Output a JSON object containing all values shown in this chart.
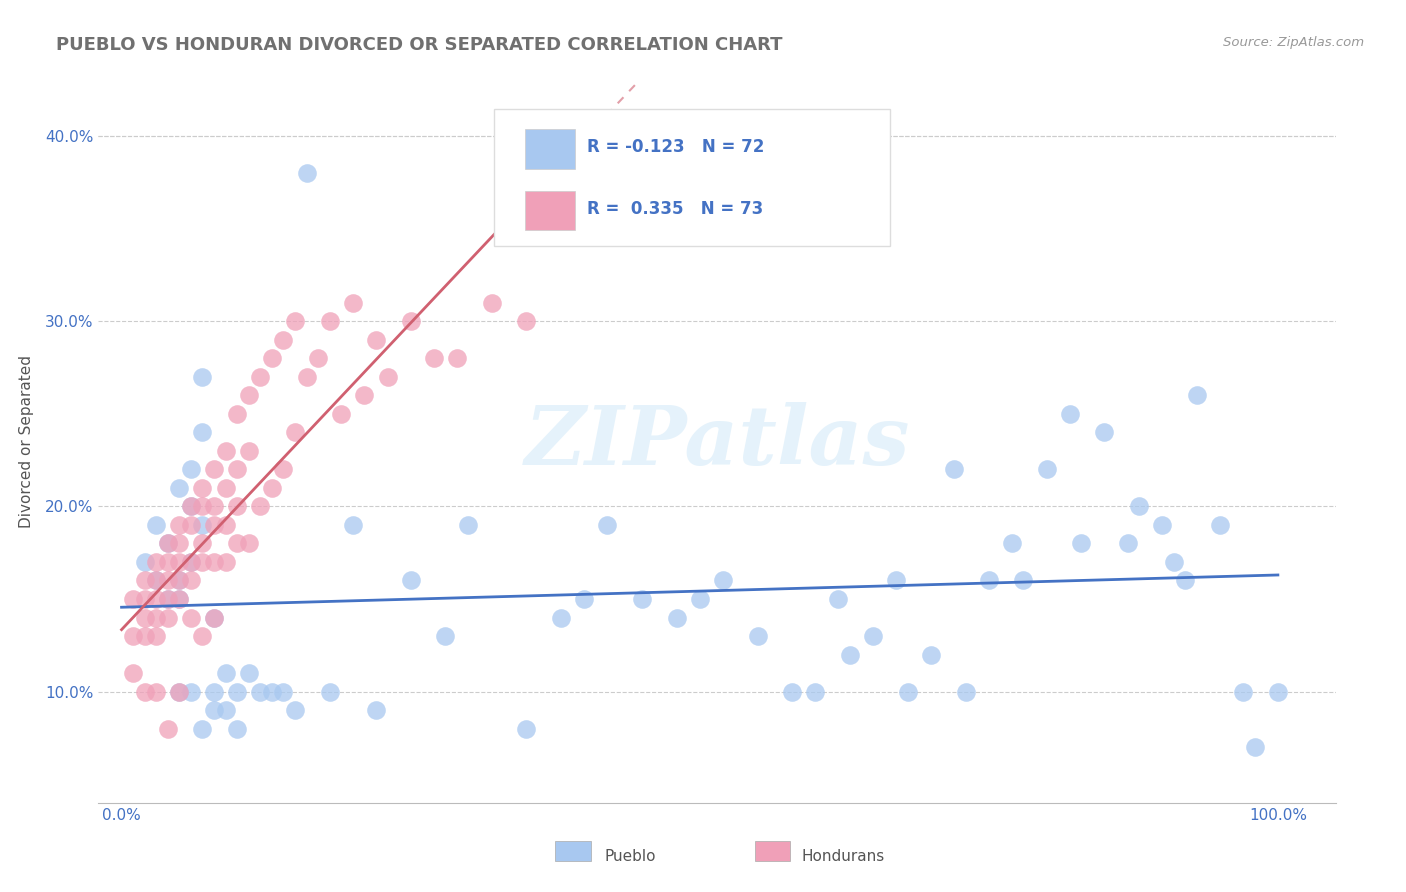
{
  "title": "PUEBLO VS HONDURAN DIVORCED OR SEPARATED CORRELATION CHART",
  "source": "Source: ZipAtlas.com",
  "ylabel": "Divorced or Separated",
  "legend_pueblo": "Pueblo",
  "legend_hondurans": "Hondurans",
  "r_pueblo": -0.123,
  "n_pueblo": 72,
  "r_hondurans": 0.335,
  "n_hondurans": 73,
  "pueblo_color": "#a8c8f0",
  "honduran_color": "#f0a0b8",
  "pueblo_line_color": "#4472c4",
  "honduran_line_color": "#d06070",
  "watermark": "ZIPatlas",
  "background_color": "#ffffff",
  "grid_color": "#cccccc",
  "title_color": "#707070",
  "axis_label_color": "#4472c4",
  "ytick_positions": [
    0.1,
    0.2,
    0.3,
    0.4
  ],
  "ylim": [
    0.04,
    0.43
  ],
  "xlim": [
    -0.02,
    1.05
  ],
  "pueblo_x": [
    0.02,
    0.03,
    0.03,
    0.04,
    0.04,
    0.05,
    0.05,
    0.05,
    0.05,
    0.06,
    0.06,
    0.06,
    0.06,
    0.07,
    0.07,
    0.07,
    0.07,
    0.08,
    0.08,
    0.08,
    0.09,
    0.09,
    0.1,
    0.1,
    0.11,
    0.12,
    0.13,
    0.14,
    0.15,
    0.16,
    0.18,
    0.2,
    0.22,
    0.25,
    0.28,
    0.3,
    0.35,
    0.38,
    0.4,
    0.42,
    0.45,
    0.48,
    0.5,
    0.52,
    0.55,
    0.58,
    0.6,
    0.62,
    0.63,
    0.65,
    0.67,
    0.68,
    0.7,
    0.72,
    0.73,
    0.75,
    0.77,
    0.78,
    0.8,
    0.82,
    0.83,
    0.85,
    0.87,
    0.88,
    0.9,
    0.91,
    0.92,
    0.93,
    0.95,
    0.97,
    0.98,
    1.0
  ],
  "pueblo_y": [
    0.17,
    0.19,
    0.16,
    0.15,
    0.18,
    0.16,
    0.21,
    0.15,
    0.1,
    0.22,
    0.2,
    0.17,
    0.1,
    0.27,
    0.24,
    0.19,
    0.08,
    0.09,
    0.14,
    0.1,
    0.09,
    0.11,
    0.08,
    0.1,
    0.11,
    0.1,
    0.1,
    0.1,
    0.09,
    0.38,
    0.1,
    0.19,
    0.09,
    0.16,
    0.13,
    0.19,
    0.08,
    0.14,
    0.15,
    0.19,
    0.15,
    0.14,
    0.15,
    0.16,
    0.13,
    0.1,
    0.1,
    0.15,
    0.12,
    0.13,
    0.16,
    0.1,
    0.12,
    0.22,
    0.1,
    0.16,
    0.18,
    0.16,
    0.22,
    0.25,
    0.18,
    0.24,
    0.18,
    0.2,
    0.19,
    0.17,
    0.16,
    0.26,
    0.19,
    0.1,
    0.07,
    0.1
  ],
  "honduran_x": [
    0.01,
    0.01,
    0.01,
    0.02,
    0.02,
    0.02,
    0.02,
    0.02,
    0.03,
    0.03,
    0.03,
    0.03,
    0.03,
    0.03,
    0.04,
    0.04,
    0.04,
    0.04,
    0.04,
    0.04,
    0.05,
    0.05,
    0.05,
    0.05,
    0.05,
    0.05,
    0.06,
    0.06,
    0.06,
    0.06,
    0.06,
    0.07,
    0.07,
    0.07,
    0.07,
    0.07,
    0.08,
    0.08,
    0.08,
    0.08,
    0.08,
    0.09,
    0.09,
    0.09,
    0.09,
    0.1,
    0.1,
    0.1,
    0.1,
    0.11,
    0.11,
    0.11,
    0.12,
    0.12,
    0.13,
    0.13,
    0.14,
    0.14,
    0.15,
    0.15,
    0.16,
    0.17,
    0.18,
    0.19,
    0.2,
    0.21,
    0.22,
    0.23,
    0.25,
    0.27,
    0.29,
    0.32,
    0.35
  ],
  "honduran_y": [
    0.15,
    0.13,
    0.11,
    0.16,
    0.15,
    0.14,
    0.13,
    0.1,
    0.17,
    0.16,
    0.15,
    0.14,
    0.13,
    0.1,
    0.18,
    0.17,
    0.16,
    0.15,
    0.14,
    0.08,
    0.19,
    0.18,
    0.17,
    0.16,
    0.15,
    0.1,
    0.2,
    0.19,
    0.17,
    0.16,
    0.14,
    0.21,
    0.2,
    0.18,
    0.17,
    0.13,
    0.22,
    0.2,
    0.19,
    0.17,
    0.14,
    0.23,
    0.21,
    0.19,
    0.17,
    0.25,
    0.22,
    0.2,
    0.18,
    0.26,
    0.23,
    0.18,
    0.27,
    0.2,
    0.28,
    0.21,
    0.29,
    0.22,
    0.3,
    0.24,
    0.27,
    0.28,
    0.3,
    0.25,
    0.31,
    0.26,
    0.29,
    0.27,
    0.3,
    0.28,
    0.28,
    0.31,
    0.3
  ]
}
